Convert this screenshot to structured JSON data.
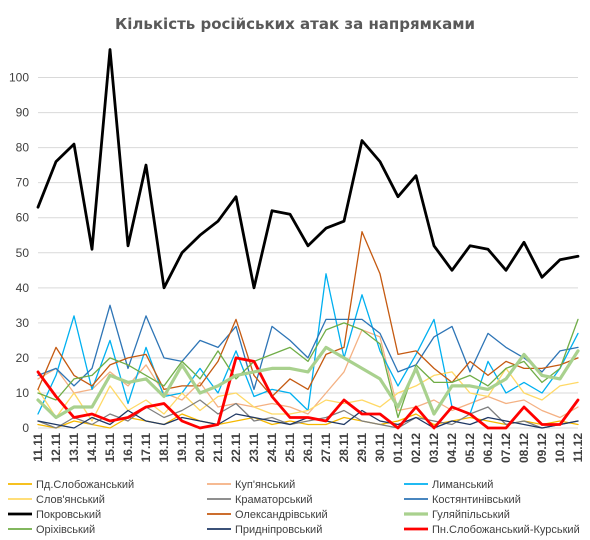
{
  "chart_data": {
    "type": "line",
    "title": "Кількість російських атак за напрямками",
    "xlabel": "",
    "ylabel": "",
    "ylim": [
      0,
      107
    ],
    "yticks": [
      0,
      10,
      20,
      30,
      40,
      50,
      60,
      70,
      80,
      90,
      100
    ],
    "grid": true,
    "legend_position": "bottom",
    "x": [
      "11.11",
      "12.11",
      "13.11",
      "14.11",
      "15.11",
      "16.11",
      "17.11",
      "18.11",
      "19.11",
      "20.11",
      "21.11",
      "22.11",
      "23.11",
      "24.11",
      "25.11",
      "26.11",
      "27.11",
      "28.11",
      "29.11",
      "30.11",
      "01.12",
      "02.12",
      "03.12",
      "04.12",
      "05.12",
      "06.12",
      "07.12",
      "08.12",
      "09.12",
      "10.12",
      "11.12"
    ],
    "xtick_labels": [
      "11.11",
      "12.11",
      "13.11",
      "14.11",
      "15.11",
      "16.11",
      "17.11",
      "18.11",
      "19.11",
      "20.11",
      "21.11",
      "22.11",
      "23.11",
      "24.11",
      "25.11",
      "26.11",
      "27.11",
      "28.11",
      "29.11",
      "30.11",
      "01.12",
      "02.12",
      "03.12",
      "04.12",
      "05.12",
      "06.12",
      "07.12",
      "08.12",
      "09.12",
      "10.12",
      "11.12"
    ],
    "series": [
      {
        "name": "Пд.Слобожанський",
        "color": "#f5b800",
        "width": 1.3,
        "values": [
          1,
          0,
          2,
          1,
          0,
          3,
          2,
          1,
          4,
          2,
          1,
          2,
          3,
          1,
          2,
          1,
          1,
          3,
          2,
          1,
          2,
          4,
          1,
          2,
          3,
          2,
          1,
          2,
          1,
          2,
          1
        ]
      },
      {
        "name": "Куп'янський",
        "color": "#f4b183",
        "width": 1.3,
        "values": [
          14,
          17,
          10,
          11,
          16,
          12,
          18,
          10,
          8,
          13,
          6,
          7,
          6,
          7,
          6,
          4,
          10,
          16,
          28,
          26,
          5,
          6,
          8,
          5,
          7,
          9,
          7,
          8,
          5,
          3,
          6
        ]
      },
      {
        "name": "Лиманський",
        "color": "#00b0f0",
        "width": 1.3,
        "values": [
          4,
          15,
          32,
          11,
          25,
          7,
          23,
          9,
          10,
          17,
          10,
          22,
          9,
          11,
          10,
          5,
          44,
          20,
          38,
          22,
          12,
          21,
          31,
          6,
          4,
          19,
          10,
          13,
          10,
          17,
          27
        ]
      },
      {
        "name": "Слов'янський",
        "color": "#ffd966",
        "width": 1.3,
        "values": [
          11,
          3,
          10,
          2,
          12,
          5,
          8,
          4,
          10,
          5,
          9,
          10,
          6,
          4,
          4,
          5,
          8,
          7,
          8,
          6,
          10,
          12,
          15,
          16,
          10,
          9,
          17,
          10,
          8,
          12,
          13
        ]
      },
      {
        "name": "Краматорський",
        "color": "#7f7f7f",
        "width": 1.3,
        "values": [
          2,
          0,
          3,
          1,
          4,
          2,
          6,
          3,
          5,
          8,
          4,
          7,
          2,
          3,
          1,
          2,
          3,
          5,
          2,
          1,
          0,
          3,
          2,
          1,
          4,
          6,
          1,
          2,
          0,
          1,
          2
        ]
      },
      {
        "name": "Костянтинівський",
        "color": "#2e75b6",
        "width": 1.3,
        "values": [
          15,
          17,
          12,
          17,
          35,
          17,
          32,
          20,
          19,
          25,
          23,
          29,
          11,
          29,
          25,
          20,
          31,
          31,
          31,
          27,
          16,
          18,
          26,
          29,
          16,
          27,
          23,
          20,
          16,
          22,
          23
        ]
      },
      {
        "name": "Покровський",
        "color": "#000000",
        "width": 2.8,
        "values": [
          63,
          76,
          81,
          51,
          108,
          52,
          75,
          40,
          50,
          55,
          59,
          66,
          40,
          62,
          61,
          52,
          57,
          59,
          82,
          76,
          66,
          72,
          52,
          45,
          52,
          51,
          45,
          53,
          43,
          48,
          49
        ]
      },
      {
        "name": "Олександрівський",
        "color": "#c55a11",
        "width": 1.3,
        "values": [
          11,
          23,
          15,
          12,
          18,
          20,
          21,
          11,
          12,
          12,
          19,
          31,
          15,
          9,
          14,
          11,
          21,
          23,
          56,
          44,
          21,
          22,
          17,
          13,
          19,
          15,
          19,
          17,
          17,
          18,
          20
        ]
      },
      {
        "name": "Гуляйпільський",
        "color": "#a9d18e",
        "width": 3.2,
        "values": [
          8,
          3,
          6,
          6,
          15,
          13,
          14,
          9,
          18,
          10,
          12,
          15,
          16,
          17,
          17,
          16,
          23,
          20,
          17,
          14,
          6,
          17,
          4,
          12,
          12,
          11,
          14,
          21,
          15,
          14,
          22
        ]
      },
      {
        "name": "Оріхівський",
        "color": "#70ad47",
        "width": 1.3,
        "values": [
          10,
          8,
          14,
          15,
          20,
          18,
          15,
          12,
          19,
          14,
          22,
          14,
          19,
          21,
          23,
          19,
          28,
          30,
          28,
          24,
          3,
          18,
          13,
          13,
          15,
          12,
          17,
          19,
          13,
          17,
          31
        ]
      },
      {
        "name": "Придніпровський",
        "color": "#1f3864",
        "width": 1.3,
        "values": [
          2,
          1,
          0,
          3,
          1,
          5,
          2,
          1,
          3,
          2,
          1,
          4,
          3,
          2,
          1,
          3,
          2,
          1,
          5,
          2,
          1,
          3,
          0,
          2,
          1,
          3,
          2,
          1,
          0,
          1,
          2
        ]
      },
      {
        "name": "Пн.Слобожанський-Курський",
        "color": "#ff0000",
        "width": 2.8,
        "values": [
          16,
          9,
          3,
          4,
          2,
          3,
          6,
          7,
          2,
          0,
          1,
          20,
          19,
          9,
          3,
          3,
          2,
          8,
          4,
          4,
          0,
          6,
          0,
          6,
          4,
          0,
          0,
          6,
          1,
          1,
          8
        ]
      }
    ]
  }
}
